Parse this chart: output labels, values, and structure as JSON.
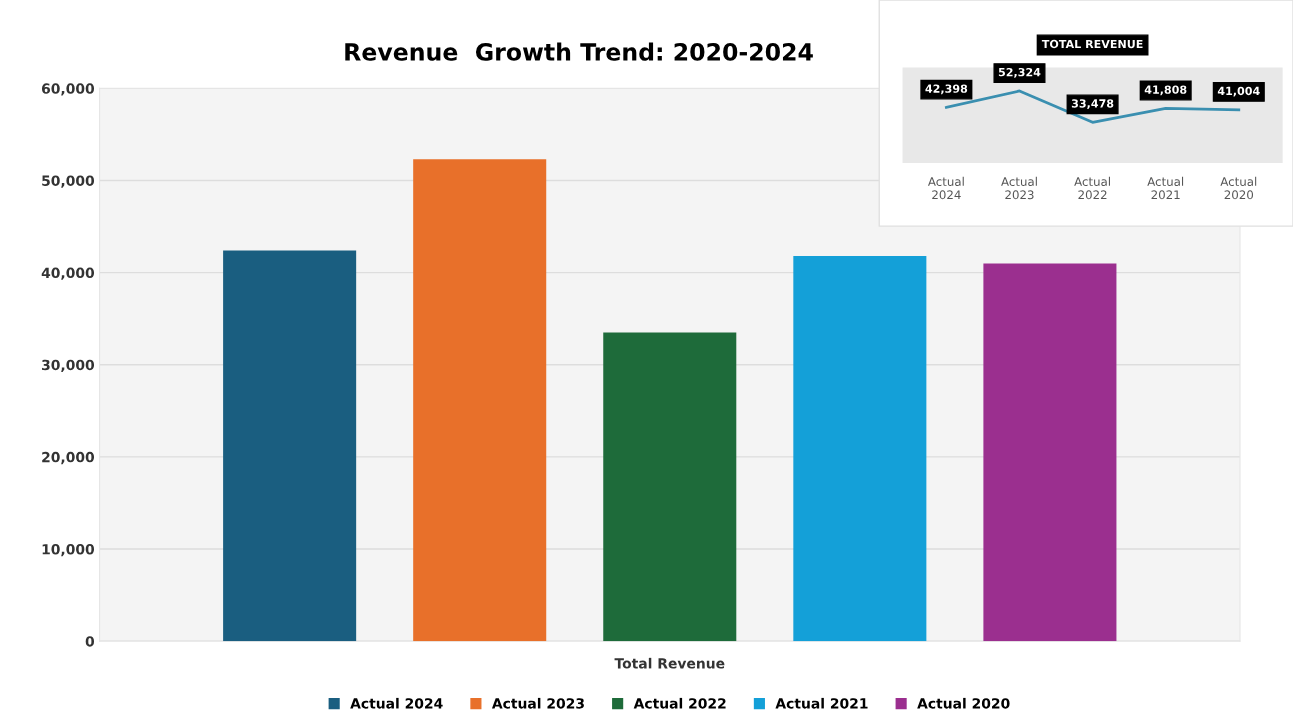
{
  "chart_data": [
    {
      "type": "bar",
      "title": "Revenue  Growth Trend: 2020-2024",
      "categories": [
        "Total Revenue"
      ],
      "series": [
        {
          "name": "Actual 2024",
          "color": "#1a5e80",
          "values": [
            42400
          ]
        },
        {
          "name": "Actual 2023",
          "color": "#e8702a",
          "values": [
            52300
          ]
        },
        {
          "name": "Actual 2022",
          "color": "#1e6b3a",
          "values": [
            33500
          ]
        },
        {
          "name": "Actual 2021",
          "color": "#14a0d8",
          "values": [
            41800
          ]
        },
        {
          "name": "Actual 2020",
          "color": "#9b2f8f",
          "values": [
            41000
          ]
        }
      ],
      "ylim": [
        0,
        60000
      ],
      "yticks": [
        0,
        {
          "value": 10000,
          "label": "10,000"
        },
        {
          "value": 20000,
          "label": "20,000"
        },
        {
          "value": 30000,
          "label": "30,000"
        },
        {
          "value": 40000,
          "label": "40,000"
        },
        {
          "value": 50000,
          "label": "50,000"
        },
        {
          "value": 60000,
          "label": "60,000"
        }
      ],
      "grid": "y",
      "legend": "bottom"
    },
    {
      "type": "line",
      "title": "TOTAL REVENUE",
      "categories": [
        "Actual\n2024",
        "Actual\n2023",
        "Actual\n2022",
        "Actual\n2021",
        "Actual\n2020"
      ],
      "values": [
        42398,
        52324,
        33478,
        41808,
        41004
      ],
      "value_labels": [
        "42,398",
        "52,324",
        "33,478",
        "41,808",
        "41,004"
      ],
      "color": "#3a8fb0",
      "tick_labels": "x"
    }
  ]
}
